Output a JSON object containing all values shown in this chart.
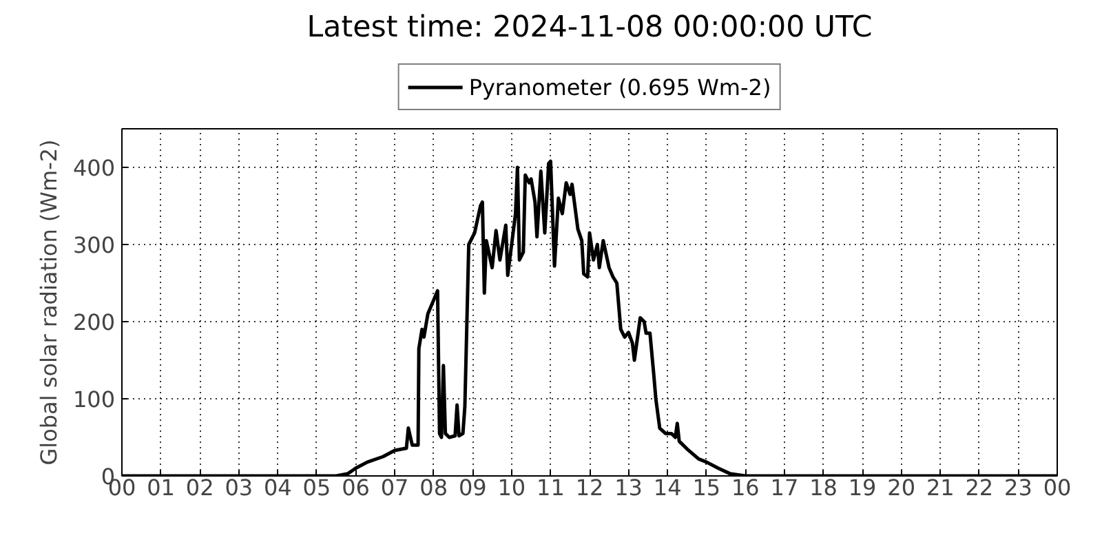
{
  "chart_data": {
    "type": "line",
    "title": "Latest time: 2024-11-08 00:00:00 UTC",
    "ylabel": "Global solar radiation (Wm-2)",
    "x": [
      0,
      5.5,
      5.8,
      6.0,
      6.3,
      6.7,
      7.0,
      7.3,
      7.35,
      7.45,
      7.6,
      7.62,
      7.7,
      7.75,
      7.85,
      8.0,
      8.1,
      8.15,
      8.2,
      8.25,
      8.3,
      8.4,
      8.55,
      8.6,
      8.65,
      8.75,
      8.8,
      8.9,
      9.05,
      9.2,
      9.25,
      9.3,
      9.35,
      9.5,
      9.6,
      9.7,
      9.85,
      9.9,
      10.0,
      10.1,
      10.15,
      10.2,
      10.3,
      10.35,
      10.45,
      10.5,
      10.6,
      10.65,
      10.75,
      10.85,
      10.95,
      11.0,
      11.1,
      11.2,
      11.3,
      11.4,
      11.5,
      11.55,
      11.7,
      11.8,
      11.85,
      11.95,
      12.0,
      12.1,
      12.2,
      12.25,
      12.35,
      12.5,
      12.6,
      12.7,
      12.8,
      12.9,
      13.0,
      13.1,
      13.15,
      13.3,
      13.4,
      13.45,
      13.55,
      13.65,
      13.7,
      13.8,
      13.95,
      14.1,
      14.2,
      14.25,
      14.3,
      14.5,
      14.8,
      15.0,
      15.3,
      15.6,
      16.0,
      24
    ],
    "series": [
      {
        "name": "Pyranometer (0.695 Wm-2)",
        "color": "#000000",
        "values": [
          0,
          0,
          3,
          10,
          18,
          25,
          33,
          36,
          62,
          40,
          40,
          165,
          190,
          180,
          210,
          228,
          240,
          55,
          50,
          143,
          55,
          50,
          52,
          92,
          52,
          55,
          90,
          300,
          315,
          350,
          355,
          237,
          305,
          270,
          318,
          280,
          325,
          260,
          300,
          340,
          400,
          280,
          290,
          390,
          380,
          385,
          355,
          310,
          395,
          315,
          405,
          408,
          272,
          360,
          340,
          380,
          365,
          378,
          320,
          305,
          262,
          258,
          315,
          280,
          300,
          270,
          305,
          270,
          258,
          250,
          190,
          180,
          186,
          172,
          150,
          205,
          200,
          185,
          185,
          130,
          100,
          62,
          55,
          55,
          50,
          68,
          45,
          35,
          22,
          18,
          10,
          3,
          0,
          0
        ]
      }
    ],
    "xlim": [
      0,
      24
    ],
    "xticks": [
      {
        "value": 0,
        "label": "00"
      },
      {
        "value": 1,
        "label": "01"
      },
      {
        "value": 2,
        "label": "02"
      },
      {
        "value": 3,
        "label": "03"
      },
      {
        "value": 4,
        "label": "04"
      },
      {
        "value": 5,
        "label": "05"
      },
      {
        "value": 6,
        "label": "06"
      },
      {
        "value": 7,
        "label": "07"
      },
      {
        "value": 8,
        "label": "08"
      },
      {
        "value": 9,
        "label": "09"
      },
      {
        "value": 10,
        "label": "10"
      },
      {
        "value": 11,
        "label": "11"
      },
      {
        "value": 12,
        "label": "12"
      },
      {
        "value": 13,
        "label": "13"
      },
      {
        "value": 14,
        "label": "14"
      },
      {
        "value": 15,
        "label": "15"
      },
      {
        "value": 16,
        "label": "16"
      },
      {
        "value": 17,
        "label": "17"
      },
      {
        "value": 18,
        "label": "18"
      },
      {
        "value": 19,
        "label": "19"
      },
      {
        "value": 20,
        "label": "20"
      },
      {
        "value": 21,
        "label": "21"
      },
      {
        "value": 22,
        "label": "22"
      },
      {
        "value": 23,
        "label": "23"
      },
      {
        "value": 24,
        "label": "00"
      }
    ],
    "ylim": [
      0,
      450
    ],
    "yticks": [
      0,
      100,
      200,
      300,
      400
    ],
    "grid": true,
    "legend": "top",
    "line_style": "solid"
  }
}
